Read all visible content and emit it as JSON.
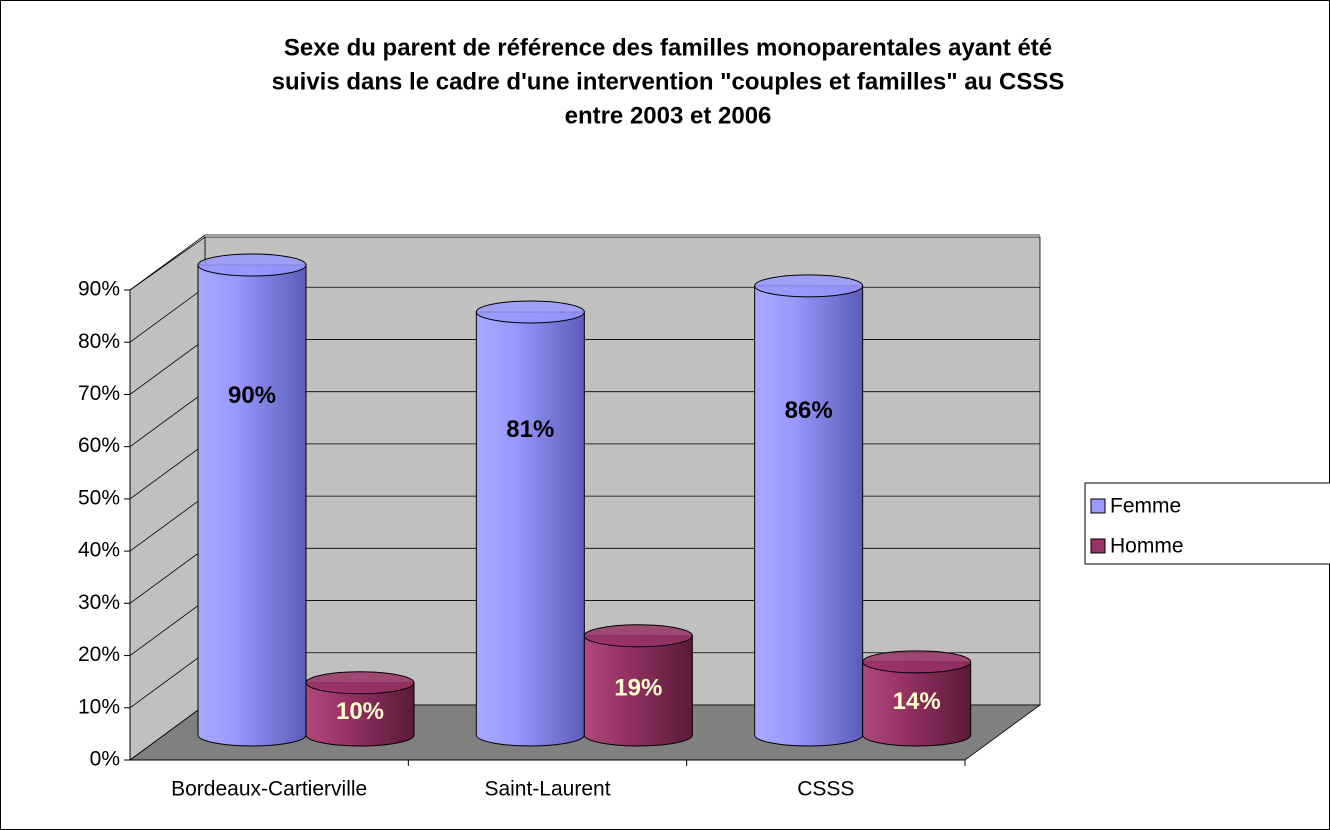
{
  "chart_data": {
    "type": "bar3d",
    "title": [
      "Sexe du parent de référence des familles monoparentales ayant été",
      "suivis dans le cadre d'une intervention \"couples et familles\" au CSSS",
      "entre 2003 et 2006"
    ],
    "categories": [
      "Bordeaux-Cartierville",
      "Saint-Laurent",
      "CSSS"
    ],
    "series": [
      {
        "name": "Femme",
        "color": "#9999ff",
        "values": [
          90,
          81,
          86
        ],
        "value_labels": [
          "90%",
          "81%",
          "86%"
        ]
      },
      {
        "name": "Homme",
        "color": "#993366",
        "values": [
          10,
          19,
          14
        ],
        "value_labels": [
          "10%",
          "19%",
          "14%"
        ]
      }
    ],
    "ylim": [
      0,
      90
    ],
    "yticks": [
      {
        "value": 0,
        "label": "0%"
      },
      {
        "value": 10,
        "label": "10%"
      },
      {
        "value": 20,
        "label": "20%"
      },
      {
        "value": 30,
        "label": "30%"
      },
      {
        "value": 40,
        "label": "40%"
      },
      {
        "value": 50,
        "label": "50%"
      },
      {
        "value": 60,
        "label": "60%"
      },
      {
        "value": 70,
        "label": "70%"
      },
      {
        "value": 80,
        "label": "80%"
      },
      {
        "value": 90,
        "label": "90%"
      }
    ],
    "grid": true,
    "legend": "right"
  }
}
